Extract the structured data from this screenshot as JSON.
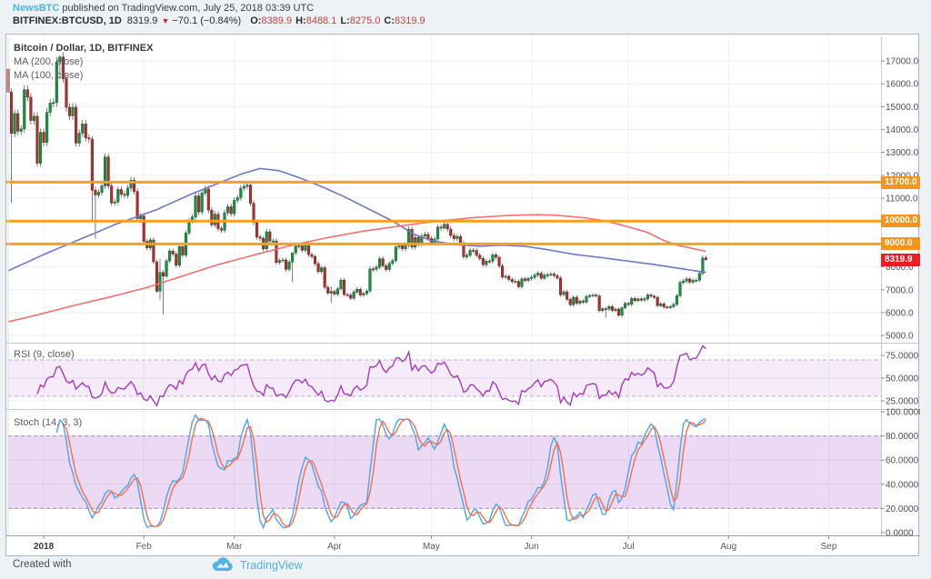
{
  "header": {
    "line1": {
      "source": "NewsBTC",
      "rest": "published on TradingView.com, July 25, 2018 03:39 UTC"
    },
    "line2": {
      "symbol": "BITFINEX:BTCUSD, 1D",
      "last": "8319.9",
      "change": "−70.1 (−0.84%)",
      "o_label": "O:",
      "o_val": "8389.9",
      "h_label": "H:",
      "h_val": "8488.1",
      "l_label": "L:",
      "l_val": "8275.0",
      "c_label": "C:",
      "c_val": "8319.9"
    }
  },
  "legends": {
    "main_title": "Bitcoin / Dollar, 1D, BITFINEX",
    "ma200": "MA (200, close)",
    "ma100": "MA (100, close)",
    "rsi": "RSI (9, close)",
    "stoch": "Stoch (14, 3, 3)"
  },
  "price_tags": {
    "level1": "11700.0",
    "level2": "10000.0",
    "level3": "9000.0",
    "last": "8319.9"
  },
  "footer": {
    "created_with": "Created with",
    "brand": "TradingView"
  },
  "colors": {
    "up_body": "#1e8e44",
    "up_border": "#0f5f2e",
    "down_body": "#a33530",
    "down_border": "#76231f",
    "wick": "#5a5a5a",
    "ma100": "#6e79c6",
    "ma200": "#f0716f",
    "level_orange": "#f7a01d",
    "rsi_line": "#a23dba",
    "stoch_k": "#4da6e8",
    "stoch_d": "#ef7152",
    "band_rsi_fill": "rgba(162,61,186,0.10)",
    "band_stoch_fill": "rgba(170,80,200,0.22)",
    "band_edge": "#a98fbc",
    "grid_h": "#e9edf6",
    "grid_v": "#eef1f8",
    "axis_text": "#4e4e4e",
    "separator": "#c6c6c6",
    "axis_border": "#c9ccd6"
  },
  "chart_data": {
    "type": "candlestick",
    "title": "Bitcoin / Dollar, 1D, BITFINEX",
    "exchange": "BITFINEX",
    "interval": "1D",
    "x_unit": "day",
    "first_open": 16642,
    "candles_close": [
      15632,
      13831,
      14699,
      13925,
      14026,
      15745,
      15416,
      14398,
      14583,
      12531,
      13880,
      13440,
      14754,
      15156,
      15180,
      16954,
      17172,
      16228,
      14969,
      14595,
      14973,
      13405,
      13841,
      14243,
      13638,
      13585,
      11348,
      11141,
      11250,
      11544,
      12800,
      11538,
      10793,
      10839,
      11379,
      11176,
      11124,
      11440,
      11786,
      11296,
      10107,
      10221,
      9114,
      8830,
      9174,
      8218,
      6937,
      7754,
      7592,
      8260,
      8696,
      8560,
      8071,
      8891,
      8516,
      9477,
      10016,
      10178,
      11097,
      10397,
      11225,
      11403,
      10480,
      9840,
      10301,
      9669,
      9600,
      10366,
      10625,
      10325,
      10905,
      11022,
      11439,
      11513,
      11573,
      10779,
      9938,
      9302,
      9242,
      8787,
      9534,
      9128,
      9132,
      8196,
      8269,
      8300,
      7890,
      8209,
      8615,
      8909,
      8916,
      8724,
      8922,
      8537,
      8449,
      8143,
      7790,
      7960,
      7106,
      6853,
      6928,
      6813,
      7039,
      7418,
      6790,
      6770,
      6627,
      6903,
      7020,
      6772,
      6834,
      6944,
      7907,
      7889,
      7986,
      8355,
      8048,
      7884,
      8152,
      8274,
      8866,
      8917,
      8792,
      8940,
      9644,
      8864,
      9281,
      8987,
      9348,
      9419,
      9240,
      9067,
      9219,
      9734,
      9692,
      9858,
      9654,
      9373,
      9234,
      9325,
      9043,
      8441,
      8504,
      8723,
      8716,
      8510,
      8368,
      8094,
      8250,
      8247,
      8522,
      8419,
      8041,
      7559,
      7587,
      7448,
      7355,
      7368,
      7135,
      7472,
      7406,
      7494,
      7541,
      7643,
      7720,
      7500,
      7633,
      7653,
      7684,
      7615,
      7512,
      6786,
      6906,
      6582,
      6343,
      6673,
      6410,
      6505,
      6460,
      6710,
      6741,
      6768,
      6734,
      6085,
      6173,
      6157,
      6267,
      6094,
      6153,
      5892,
      6214,
      6404,
      6357,
      6617,
      6528,
      6598,
      6548,
      6605,
      6772,
      6717,
      6668,
      6306,
      6388,
      6243,
      6232,
      6264,
      6358,
      6737,
      7320,
      7378,
      7470,
      7331,
      7408,
      7417,
      7719,
      8390,
      8320
    ],
    "wick_overrides": {
      "0": [
        17281,
        15005
      ],
      "1": [
        15800,
        10800
      ],
      "16": [
        17250,
        16200
      ],
      "26": [
        13700,
        9960
      ],
      "27": [
        11500,
        9222
      ],
      "47": [
        8350,
        6579
      ],
      "48": [
        7850,
        5920
      ],
      "88": [
        8290,
        7335
      ],
      "100": [
        7150,
        6430
      ],
      "135": [
        9990,
        9630
      ],
      "185": [
        6240,
        5780
      ],
      "190": [
        6270,
        5800
      ],
      "216": [
        8488,
        8275
      ]
    },
    "ma100_points": [
      [
        0,
        7830
      ],
      [
        12,
        8600
      ],
      [
        23,
        9250
      ],
      [
        34,
        9900
      ],
      [
        46,
        10500
      ],
      [
        57,
        11200
      ],
      [
        65,
        11650
      ],
      [
        72,
        12050
      ],
      [
        78,
        12300
      ],
      [
        84,
        12200
      ],
      [
        91,
        11850
      ],
      [
        98,
        11450
      ],
      [
        105,
        11000
      ],
      [
        112,
        10500
      ],
      [
        119,
        10000
      ],
      [
        126,
        9400
      ],
      [
        131,
        9150
      ],
      [
        138,
        8980
      ],
      [
        146,
        8900
      ],
      [
        153,
        8950
      ],
      [
        160,
        8900
      ],
      [
        167,
        8750
      ],
      [
        175,
        8550
      ],
      [
        184,
        8400
      ],
      [
        192,
        8250
      ],
      [
        200,
        8100
      ],
      [
        207,
        7950
      ],
      [
        213,
        7820
      ],
      [
        216,
        7760
      ]
    ],
    "ma200_points": [
      [
        0,
        5600
      ],
      [
        9,
        5900
      ],
      [
        20,
        6300
      ],
      [
        32,
        6700
      ],
      [
        43,
        7100
      ],
      [
        54,
        7600
      ],
      [
        65,
        8100
      ],
      [
        77,
        8550
      ],
      [
        88,
        8950
      ],
      [
        99,
        9280
      ],
      [
        110,
        9560
      ],
      [
        122,
        9800
      ],
      [
        133,
        10000
      ],
      [
        144,
        10150
      ],
      [
        155,
        10250
      ],
      [
        164,
        10280
      ],
      [
        169,
        10260
      ],
      [
        178,
        10150
      ],
      [
        185,
        10000
      ],
      [
        192,
        9750
      ],
      [
        198,
        9500
      ],
      [
        203,
        9150
      ],
      [
        207,
        8950
      ],
      [
        212,
        8800
      ],
      [
        216,
        8680
      ]
    ],
    "levels": [
      11700,
      10000,
      9000
    ],
    "last_price": 8319.9,
    "indicators": {
      "rsi": {
        "period": 9,
        "source": "close",
        "band": [
          30,
          70
        ],
        "ticks": [
          75,
          50,
          25
        ],
        "decimals": 4
      },
      "stoch": {
        "k": 14,
        "k_smooth": 3,
        "d": 3,
        "band": [
          20,
          80
        ],
        "ticks": [
          100,
          80,
          60,
          40,
          20,
          0
        ],
        "decimals": 4
      }
    },
    "price_axis": {
      "ticks": [
        17000,
        16000,
        15000,
        14000,
        13000,
        12000,
        11000,
        10000,
        9000,
        8000,
        7000,
        6000,
        5000
      ],
      "decimals": 1
    },
    "time_axis": [
      {
        "label": "2018",
        "day": 11,
        "strong": true
      },
      {
        "label": "Feb",
        "day": 42
      },
      {
        "label": "Mar",
        "day": 70
      },
      {
        "label": "Apr",
        "day": 101
      },
      {
        "label": "May",
        "day": 131
      },
      {
        "label": "Jun",
        "day": 162
      },
      {
        "label": "Jul",
        "day": 192
      },
      {
        "label": "Aug",
        "day": 223
      },
      {
        "label": "Sep",
        "day": 254
      }
    ],
    "ylim_main": [
      4687,
      18033
    ],
    "ylim_rsi": [
      16,
      88
    ],
    "ylim_stoch": [
      -2.3,
      101.5
    ],
    "grid": true,
    "legend_position": "top-left"
  }
}
